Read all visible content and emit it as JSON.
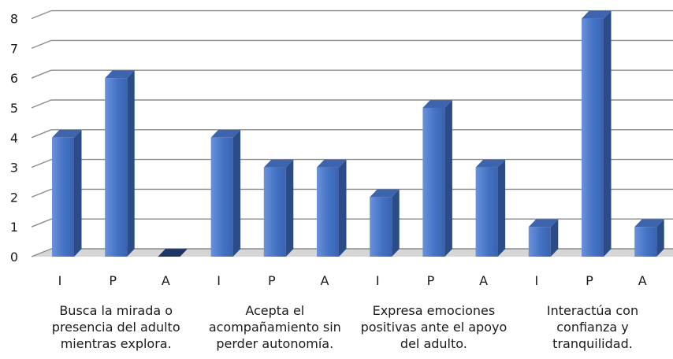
{
  "chart_data": {
    "type": "bar",
    "style": "3d-column",
    "groups": [
      {
        "label": [
          "Busca la mirada o",
          "presencia del adulto",
          "mientras explora."
        ],
        "categories": [
          "I",
          "P",
          "A"
        ],
        "values": [
          4,
          6,
          0
        ]
      },
      {
        "label": [
          "Acepta el",
          "acompañamiento sin",
          "perder autonomía."
        ],
        "categories": [
          "I",
          "P",
          "A"
        ],
        "values": [
          4,
          3,
          3
        ]
      },
      {
        "label": [
          "Expresa emociones",
          "positivas ante el apoyo",
          "del adulto."
        ],
        "categories": [
          "I",
          "P",
          "A"
        ],
        "values": [
          2,
          5,
          3
        ]
      },
      {
        "label": [
          "Interactúa con",
          "confianza y",
          "tranquilidad."
        ],
        "categories": [
          "I",
          "P",
          "A"
        ],
        "values": [
          1,
          8,
          1
        ]
      }
    ],
    "y_ticks": [
      "0",
      "1",
      "2",
      "3",
      "4",
      "5",
      "6",
      "7",
      "8"
    ],
    "ylim": [
      0,
      8
    ],
    "grid": true,
    "legend": "none",
    "colors": {
      "bar_front": "#4472c4",
      "bar_front_light": "#6a92dc",
      "bar_side": "#2b4c86",
      "bar_top": "#3d64ad",
      "grid": "#8c8c8c",
      "floor": "#d6d6d6"
    }
  }
}
